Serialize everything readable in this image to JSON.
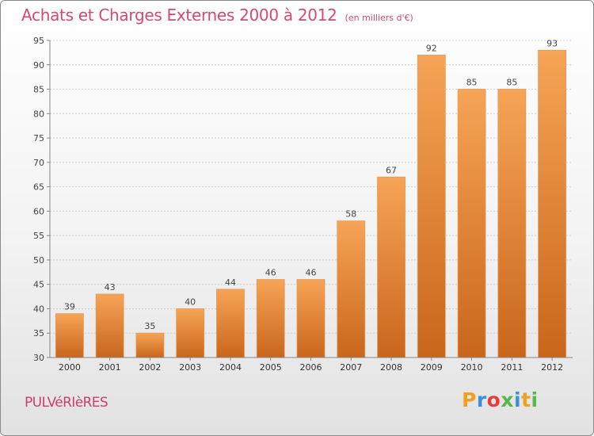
{
  "title": "Achats et Charges Externes 2000 à 2012",
  "unit_label": "(en milliers d'€)",
  "commune": "PULVéRIèRES",
  "logo": {
    "text": "Proxiti",
    "colors": [
      "#f0a020",
      "#3c8fd8",
      "#e4403a",
      "#5ab54a"
    ]
  },
  "chart_data": {
    "type": "bar",
    "title": "Achats et Charges Externes 2000 à 2012",
    "categories": [
      "2000",
      "2001",
      "2002",
      "2003",
      "2004",
      "2005",
      "2006",
      "2007",
      "2008",
      "2009",
      "2010",
      "2011",
      "2012"
    ],
    "values": [
      39,
      43,
      35,
      40,
      44,
      46,
      46,
      58,
      67,
      92,
      85,
      85,
      93
    ],
    "xlabel": "",
    "ylabel": "",
    "ylim": [
      30,
      95
    ],
    "yticks": [
      30,
      35,
      40,
      45,
      50,
      55,
      60,
      65,
      70,
      75,
      80,
      85,
      90,
      95
    ],
    "grid": true,
    "bar_color": "#f08a2a"
  }
}
